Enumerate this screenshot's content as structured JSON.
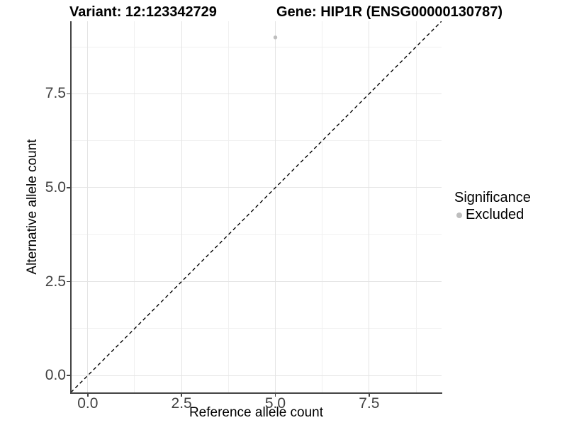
{
  "chart_data": {
    "type": "scatter",
    "titles": {
      "left": "Variant: 12:123342729",
      "right": "Gene: HIP1R (ENSG00000130787)"
    },
    "xlabel": "Reference allele count",
    "ylabel": "Alternative allele count",
    "xlim": [
      -0.45,
      9.43
    ],
    "ylim": [
      -0.45,
      9.43
    ],
    "xticks": {
      "values": [
        0,
        2.5,
        5,
        7.5
      ],
      "labels": [
        "0.0",
        "2.5",
        "5.0",
        "7.5"
      ]
    },
    "yticks": {
      "values": [
        0,
        2.5,
        5,
        7.5
      ],
      "labels": [
        "0.0",
        "2.5",
        "5.0",
        "7.5"
      ]
    },
    "minor_ticks": [
      1.25,
      3.75,
      6.25,
      8.75
    ],
    "grid": "major+minor",
    "series": [
      {
        "name": "Excluded",
        "color": "#bebebe",
        "points": [
          {
            "x": 5,
            "y": 9
          }
        ]
      }
    ],
    "reference_line": {
      "slope": 1,
      "intercept": 0,
      "style": "dashed",
      "color": "#000000"
    },
    "legend": {
      "title": "Significance",
      "position": "right",
      "items": [
        {
          "label": "Excluded",
          "color": "#bebebe"
        }
      ]
    },
    "colors": {
      "background": "#ffffff",
      "grid_major": "#e4e4e4",
      "grid_minor": "#f0f0f0",
      "axis_line": "#444444",
      "tick_mark": "#444444",
      "tick_label": "#404040",
      "text": "#000000"
    }
  }
}
